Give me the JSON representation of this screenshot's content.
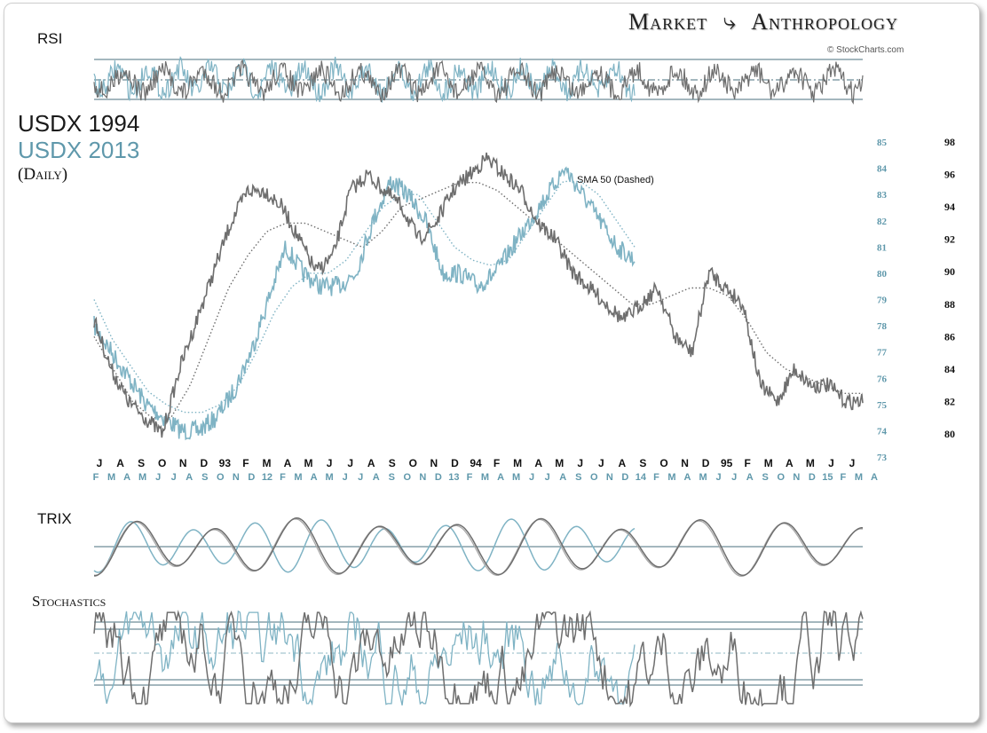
{
  "brand": {
    "left": "Market",
    "right": "Anthropology",
    "credit": "© StockCharts.com"
  },
  "titles": {
    "series_1994": "USDX 1994",
    "series_2013": "USDX 2013",
    "period": "(Daily)"
  },
  "panels": {
    "rsi": "RSI",
    "trix": "TRIX",
    "stoch": "Stochastics"
  },
  "annotation": "SMA 50 (Dashed)",
  "colors": {
    "s1994": "#6e6e6e",
    "s2013": "#7fb3c4",
    "sma": "#6e6e6e",
    "grid": "#4a6f7c"
  },
  "chart_data": {
    "type": "line",
    "title": "USDX 1994 vs USDX 2013 (Daily)",
    "left_axis": {
      "label": "USDX 2013",
      "ticks": [
        85,
        84,
        83,
        82,
        81,
        80,
        79,
        78,
        77,
        76,
        75,
        74,
        73
      ]
    },
    "right_axis": {
      "label": "USDX 1994",
      "ticks": [
        98,
        96,
        94,
        92,
        90,
        88,
        86,
        84,
        82,
        80
      ]
    },
    "months_1994": [
      "J",
      "A",
      "S",
      "O",
      "N",
      "D",
      "93",
      "F",
      "M",
      "A",
      "M",
      "J",
      "J",
      "A",
      "S",
      "O",
      "N",
      "D",
      "94",
      "F",
      "M",
      "A",
      "M",
      "J",
      "J",
      "A",
      "S",
      "O",
      "N",
      "D",
      "95",
      "F",
      "M",
      "A",
      "M",
      "J",
      "J"
    ],
    "months_2013": [
      "F",
      "M",
      "A",
      "M",
      "J",
      "J",
      "A",
      "S",
      "O",
      "N",
      "D",
      "12",
      "F",
      "M",
      "A",
      "M",
      "J",
      "J",
      "A",
      "S",
      "O",
      "N",
      "D",
      "13",
      "F",
      "M",
      "A",
      "M",
      "J",
      "J",
      "A",
      "S",
      "O",
      "N",
      "D",
      "14",
      "F",
      "M",
      "A",
      "M",
      "J",
      "J",
      "A",
      "S",
      "O",
      "N",
      "D",
      "15",
      "F",
      "M",
      "A"
    ],
    "series": [
      {
        "name": "USDX 1994",
        "axis": "right",
        "values": [
          87,
          84,
          82,
          81,
          80,
          84,
          87,
          90,
          93,
          95,
          95,
          94,
          92,
          90,
          91,
          95,
          96,
          95,
          94,
          92,
          93,
          95,
          96,
          97,
          96,
          95,
          93,
          92,
          90,
          89,
          88,
          87,
          88,
          89,
          86,
          85,
          90,
          89,
          88,
          83,
          82,
          84,
          83,
          83,
          82,
          82
        ]
      },
      {
        "name": "USDX 2013",
        "axis": "left",
        "values": [
          78,
          77,
          76,
          75,
          74.5,
          74,
          74,
          74.5,
          75.5,
          77,
          79,
          81,
          80,
          79.5,
          79.5,
          80,
          82,
          83.5,
          83,
          82,
          80,
          80,
          79.5,
          80,
          81,
          82,
          83,
          84,
          83,
          82,
          81,
          80.5
        ]
      },
      {
        "name": "SMA 50 1994",
        "axis": "right",
        "values": [
          86,
          84,
          82,
          81,
          81,
          83,
          86,
          89,
          91,
          92.5,
          93,
          93,
          92.5,
          92,
          91.5,
          92.5,
          94,
          94.5,
          95,
          95.5,
          95.5,
          95,
          94,
          93,
          92,
          91,
          90,
          89,
          88,
          88,
          88.5,
          89,
          89,
          88.5,
          87,
          85,
          84,
          83.5,
          83,
          82.5,
          82.5
        ]
      },
      {
        "name": "SMA 50 2013",
        "axis": "left",
        "values": [
          79,
          77.5,
          76.5,
          75.5,
          75,
          74.7,
          74.7,
          75,
          75.7,
          77,
          78.5,
          79.5,
          80,
          80,
          80.5,
          81.5,
          82.5,
          83,
          83,
          82,
          81,
          80.5,
          80.3,
          80.5,
          81.5,
          82.5,
          83.5,
          83.5,
          83,
          82,
          81
        ]
      }
    ],
    "panels": {
      "rsi": {
        "label": "RSI",
        "levels": [
          70,
          50,
          30
        ]
      },
      "trix": {
        "label": "TRIX",
        "levels": [
          0
        ]
      },
      "stochastics": {
        "label": "Stochastics",
        "levels": [
          80,
          50,
          20
        ]
      }
    }
  }
}
